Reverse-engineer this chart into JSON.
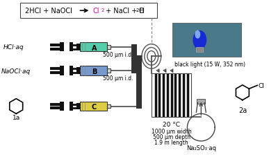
{
  "fig_width": 3.87,
  "fig_height": 2.28,
  "dpi": 100,
  "bg_color": "#ffffff",
  "cl2_color": "#cc00aa",
  "syringe_A_color": "#55ccaa",
  "syringe_B_color": "#7799cc",
  "syringe_C_color": "#ddcc44",
  "label_A": "A",
  "label_B": "B",
  "label_C": "C",
  "label_HCl": "HCl·aq",
  "label_NaOCl": "NaOCl·aq",
  "label_1a": "1a",
  "label_2a": "2a",
  "label_500um_1": "500 μm i.d.",
  "label_500um_2": "500 μm i.d.",
  "label_black_light": "black light (15 W, 352 nm)",
  "label_20C": "20 °C",
  "label_1000um": "1000 μm width",
  "label_500um_depth": "500 μm depth",
  "label_1p9m": "1.9 m length",
  "label_Na2SO3": "Na₂SO₃·aq",
  "light_box_color": "#4a7a8a",
  "connector_color": "#444444",
  "pump_color": "#111111"
}
